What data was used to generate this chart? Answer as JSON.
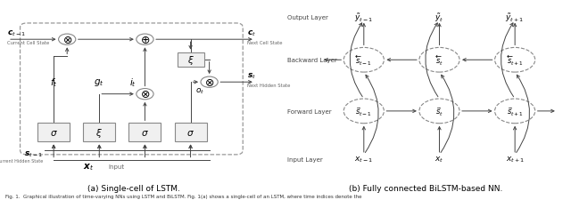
{
  "fig_width": 6.4,
  "fig_height": 2.26,
  "dpi": 100,
  "bg_color": "#ffffff",
  "caption_a": "(a) Single-cell of LSTM.",
  "caption_b": "(b) Fully connected BiLSTM-based NN.",
  "fig_caption": "Fig. 1.  Graphical illustration of time-varying NNs using LSTM and BiLSTM. Fig. 1(a) shows a single-cell of an LSTM, where time indices denote the",
  "gray": "#888888",
  "dark": "#333333",
  "dgray": "#555555"
}
